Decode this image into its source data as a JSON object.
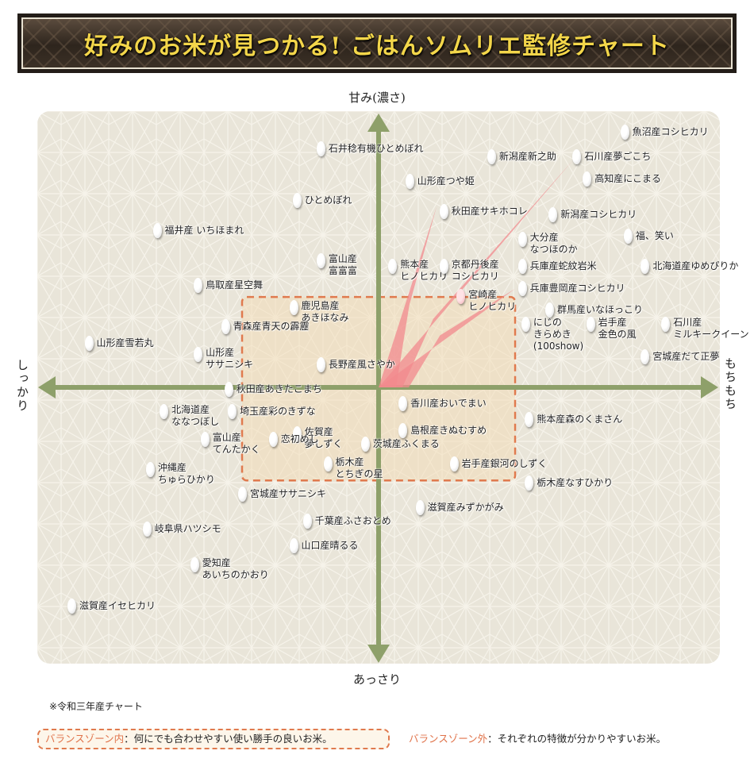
{
  "title": "好みのお米が見つかる! ごはんソムリエ監修チャート",
  "colors": {
    "background_plot": "#e9e5d9",
    "axis": "#8ea06a",
    "balance_zone_border": "#e07a4e",
    "balance_zone_fill": "#f3dcb8",
    "spike": "#f28a8e",
    "title_text": "#f3d64a",
    "banner": "#231d18"
  },
  "chart_data": {
    "type": "scatter",
    "title": "好みのお米が見つかる! ごはんソムリエ監修チャート",
    "axes": {
      "top": "甘み(濃さ)",
      "bottom": "あっさり",
      "left": "しっかり",
      "right": "もちもち"
    },
    "xlim": [
      -10,
      10
    ],
    "ylim": [
      -10,
      10
    ],
    "grid": false,
    "balance_zone": {
      "x": [
        -4.0,
        4.0
      ],
      "y": [
        -3.4,
        3.3
      ]
    },
    "highlight": "宮崎産ヒノヒカリ",
    "points": [
      {
        "name": [
          "魚沼産コシヒカリ"
        ],
        "x": 7.2,
        "y": 9.3
      },
      {
        "name": [
          "石井稔有機ひとめぼれ"
        ],
        "x": -1.7,
        "y": 8.7
      },
      {
        "name": [
          "新潟産新之助"
        ],
        "x": 3.3,
        "y": 8.4
      },
      {
        "name": [
          "石川産夢ごこち"
        ],
        "x": 5.8,
        "y": 8.4
      },
      {
        "name": [
          "山形産つや姫"
        ],
        "x": 0.9,
        "y": 7.5
      },
      {
        "name": [
          "高知産にこまる"
        ],
        "x": 6.1,
        "y": 7.6
      },
      {
        "name": [
          "ひとめぼれ"
        ],
        "x": -2.4,
        "y": 6.8
      },
      {
        "name": [
          "秋田産サキホコレ"
        ],
        "x": 1.9,
        "y": 6.4
      },
      {
        "name": [
          "新潟産コシヒカリ"
        ],
        "x": 5.1,
        "y": 6.3
      },
      {
        "name": [
          "福井産 いちほまれ"
        ],
        "x": -6.5,
        "y": 5.7
      },
      {
        "name": [
          "大分産",
          "なつほのか"
        ],
        "x": 4.2,
        "y": 5.4
      },
      {
        "name": [
          "福、笑い"
        ],
        "x": 7.3,
        "y": 5.5
      },
      {
        "name": [
          "富山産",
          "富富富"
        ],
        "x": -1.7,
        "y": 4.6
      },
      {
        "name": [
          "熊本産",
          "ヒノヒカリ"
        ],
        "x": 0.4,
        "y": 4.4
      },
      {
        "name": [
          "京都丹後産",
          "コシヒカリ"
        ],
        "x": 1.9,
        "y": 4.4
      },
      {
        "name": [
          "兵庫産蛇紋岩米"
        ],
        "x": 4.2,
        "y": 4.4
      },
      {
        "name": [
          "北海道産ゆめぴりか"
        ],
        "x": 7.8,
        "y": 4.4
      },
      {
        "name": [
          "鳥取産星空舞"
        ],
        "x": -5.3,
        "y": 3.7
      },
      {
        "name": [
          "兵庫豊岡産コシヒカリ"
        ],
        "x": 4.2,
        "y": 3.6
      },
      {
        "name": [
          "宮崎産",
          "ヒノヒカリ"
        ],
        "x": 2.4,
        "y": 3.3
      },
      {
        "name": [
          "鹿児島産",
          "あきほなみ"
        ],
        "x": -2.5,
        "y": 2.9
      },
      {
        "name": [
          "群馬産いなほっこり"
        ],
        "x": 5.0,
        "y": 2.8
      },
      {
        "name": [
          "青森産青天の霹靂"
        ],
        "x": -4.5,
        "y": 2.2
      },
      {
        "name": [
          "にじの",
          "きらめき",
          "(100show)"
        ],
        "x": 4.3,
        "y": 2.3
      },
      {
        "name": [
          "岩手産",
          "金色の風"
        ],
        "x": 6.2,
        "y": 2.3
      },
      {
        "name": [
          "石川産",
          "ミルキークイーン"
        ],
        "x": 8.4,
        "y": 2.3
      },
      {
        "name": [
          "山形産雪若丸"
        ],
        "x": -8.5,
        "y": 1.6
      },
      {
        "name": [
          "山形産",
          "ササニシキ"
        ],
        "x": -5.3,
        "y": 1.2
      },
      {
        "name": [
          "宮城産だて正夢"
        ],
        "x": 7.8,
        "y": 1.1
      },
      {
        "name": [
          "長野産風さやか"
        ],
        "x": -1.7,
        "y": 0.8
      },
      {
        "name": [
          "秋田産あきたこまち"
        ],
        "x": -4.4,
        "y": -0.1
      },
      {
        "name": [
          "香川産おいでまい"
        ],
        "x": 0.7,
        "y": -0.6
      },
      {
        "name": [
          "北海道産",
          "ななつぼし"
        ],
        "x": -6.3,
        "y": -0.9
      },
      {
        "name": [
          "埼玉産彩のきずな"
        ],
        "x": -4.3,
        "y": -0.9
      },
      {
        "name": [
          "熊本産森のくまさん"
        ],
        "x": 4.4,
        "y": -1.2
      },
      {
        "name": [
          "島根産きぬむすめ"
        ],
        "x": 0.7,
        "y": -1.6
      },
      {
        "name": [
          "佐賀産",
          "夢しずく"
        ],
        "x": -2.4,
        "y": -1.7
      },
      {
        "name": [
          "富山産",
          "てんたかく"
        ],
        "x": -5.1,
        "y": -1.9
      },
      {
        "name": [
          "恋初めし"
        ],
        "x": -3.1,
        "y": -1.9
      },
      {
        "name": [
          "茨城産ふくまる"
        ],
        "x": -0.4,
        "y": -2.1
      },
      {
        "name": [
          "岩手産銀河のしずく"
        ],
        "x": 2.2,
        "y": -2.8
      },
      {
        "name": [
          "栃木産",
          "とちぎの星"
        ],
        "x": -1.5,
        "y": -2.8
      },
      {
        "name": [
          "沖縄産",
          "ちゅらひかり"
        ],
        "x": -6.7,
        "y": -3.0
      },
      {
        "name": [
          "栃木産なすひかり"
        ],
        "x": 4.4,
        "y": -3.5
      },
      {
        "name": [
          "宮城産ササニシキ"
        ],
        "x": -4.0,
        "y": -3.9
      },
      {
        "name": [
          "滋賀産みずかがみ"
        ],
        "x": 1.2,
        "y": -4.4
      },
      {
        "name": [
          "千葉産ふさおとめ"
        ],
        "x": -2.1,
        "y": -4.9
      },
      {
        "name": [
          "岐阜県ハツシモ"
        ],
        "x": -6.8,
        "y": -5.2
      },
      {
        "name": [
          "山口産晴るる"
        ],
        "x": -2.5,
        "y": -5.8
      },
      {
        "name": [
          "愛知産",
          "あいちのかおり"
        ],
        "x": -5.4,
        "y": -6.5
      },
      {
        "name": [
          "滋賀産イセヒカリ"
        ],
        "x": -9.0,
        "y": -8.0
      }
    ]
  },
  "footnote": "※令和三年産チャート",
  "legend": {
    "inside_key": "バランスゾーン内",
    "inside_text": "：何にでも合わせやすい使い勝手の良いお米。",
    "outside_key": "バランスゾーン外",
    "outside_text": "：それぞれの特徴が分かりやすいお米。"
  }
}
